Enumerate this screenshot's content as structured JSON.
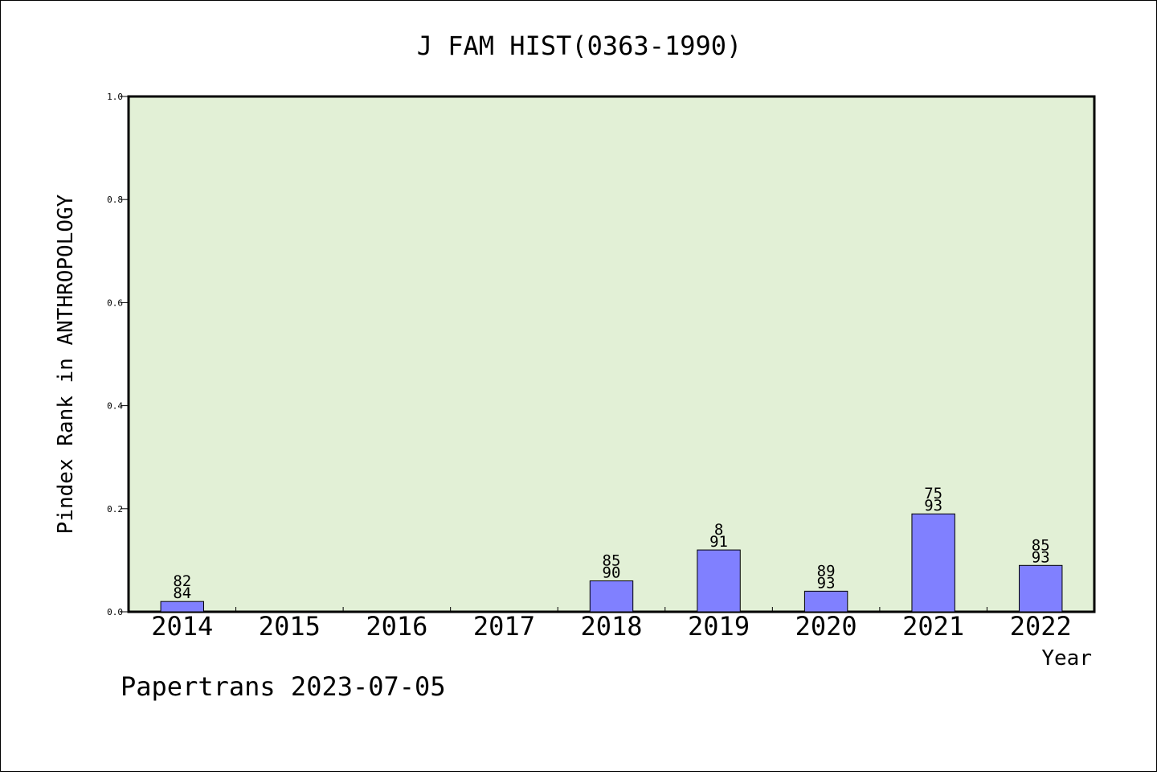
{
  "chart_data": {
    "type": "bar",
    "title": "J FAM HIST(0363-1990)",
    "xlabel": "Year",
    "ylabel": "Pindex Rank in ANTHROPOLOGY",
    "categories": [
      "2014",
      "2015",
      "2016",
      "2017",
      "2018",
      "2019",
      "2020",
      "2021",
      "2022"
    ],
    "values": [
      0.02,
      0,
      0,
      0,
      0.06,
      0.12,
      0.04,
      0.19,
      0.09
    ],
    "bar_labels": [
      [
        "82",
        "84"
      ],
      null,
      null,
      null,
      [
        "85",
        "90"
      ],
      [
        "8",
        "91"
      ],
      [
        "89",
        "93"
      ],
      [
        "75",
        "93"
      ],
      [
        "85",
        "93"
      ]
    ],
    "ylim": [
      0,
      1.0
    ],
    "yticks": [
      "0.0",
      "0.2",
      "0.4",
      "0.6",
      "0.8",
      "1.0"
    ],
    "grid": false,
    "colors": {
      "plot_background": "#e2f0d6",
      "bar_fill": "#8080ff",
      "bar_stroke": "#000000"
    }
  },
  "footer": "Papertrans 2023-07-05"
}
